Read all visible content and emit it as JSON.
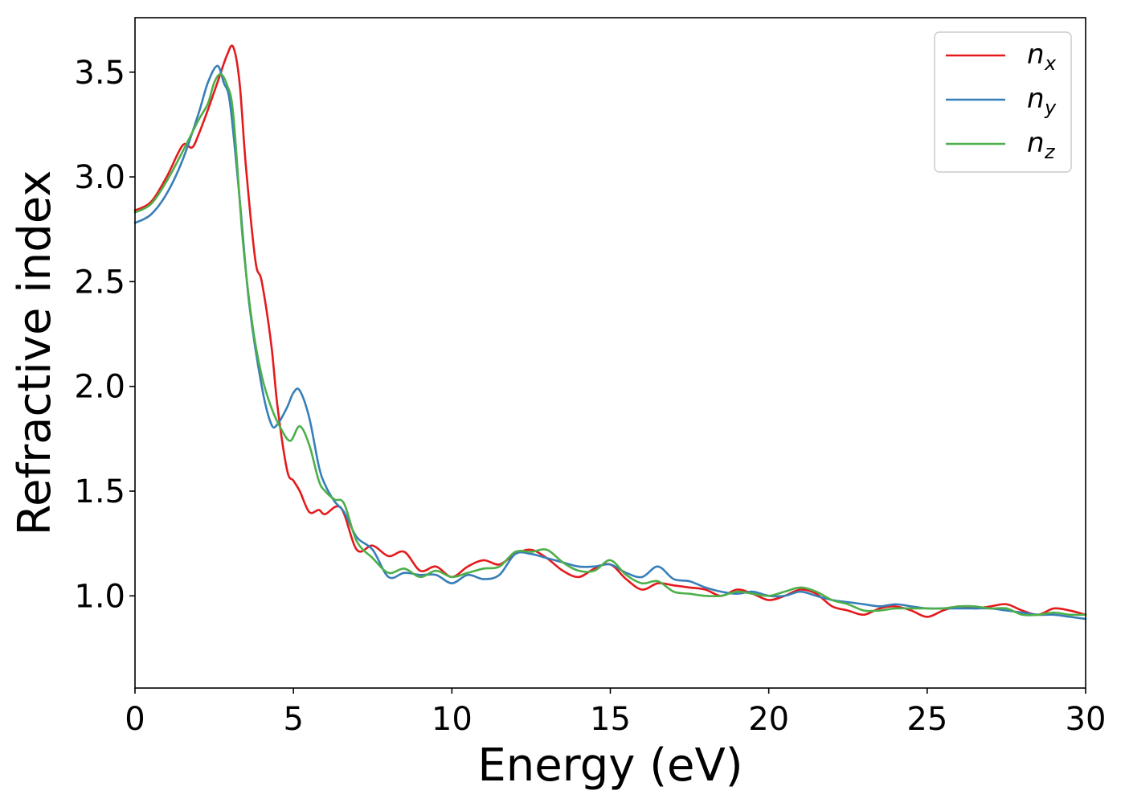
{
  "chart_data": {
    "type": "line",
    "title": "",
    "xlabel": "Energy (eV)",
    "ylabel": "Refractive index",
    "xlim": [
      0,
      30
    ],
    "ylim": [
      0.56,
      3.76
    ],
    "xticks": [
      0,
      5,
      10,
      15,
      20,
      25,
      30
    ],
    "xtick_labels": [
      "0",
      "5",
      "10",
      "15",
      "20",
      "25",
      "30"
    ],
    "yticks": [
      1.0,
      1.5,
      2.0,
      2.5,
      3.0,
      3.5
    ],
    "ytick_labels": [
      "1.0",
      "1.5",
      "2.0",
      "2.5",
      "3.0",
      "3.5"
    ],
    "grid": false,
    "legend_position": "top-right",
    "series": [
      {
        "name": "n_x",
        "legend_base": "n",
        "legend_sub": "x",
        "color": "#e41a1c",
        "x": [
          0,
          0.5,
          1.0,
          1.5,
          1.8,
          2.0,
          2.3,
          2.6,
          2.9,
          3.1,
          3.3,
          3.5,
          3.8,
          4.0,
          4.3,
          4.5,
          4.8,
          5.0,
          5.2,
          5.5,
          5.8,
          6.0,
          6.5,
          7.0,
          7.5,
          8.0,
          8.5,
          9.0,
          9.5,
          10.0,
          10.5,
          11.0,
          11.5,
          12.0,
          12.5,
          13.0,
          13.5,
          14.0,
          14.5,
          15.0,
          15.5,
          16.0,
          16.5,
          17.0,
          17.5,
          18.0,
          18.5,
          19.0,
          19.5,
          20.0,
          20.5,
          21.0,
          21.5,
          22.0,
          22.5,
          23.0,
          23.5,
          24.0,
          24.5,
          25.0,
          25.5,
          26.0,
          26.5,
          27.0,
          27.5,
          28.0,
          28.5,
          29.0,
          29.5,
          30.0
        ],
        "y": [
          2.84,
          2.88,
          3.0,
          3.15,
          3.14,
          3.2,
          3.32,
          3.45,
          3.58,
          3.62,
          3.45,
          3.05,
          2.6,
          2.5,
          2.2,
          1.9,
          1.6,
          1.55,
          1.5,
          1.4,
          1.41,
          1.39,
          1.42,
          1.22,
          1.24,
          1.19,
          1.21,
          1.12,
          1.14,
          1.09,
          1.14,
          1.17,
          1.15,
          1.2,
          1.22,
          1.18,
          1.12,
          1.09,
          1.13,
          1.15,
          1.08,
          1.03,
          1.06,
          1.05,
          1.04,
          1.03,
          1.0,
          1.03,
          1.01,
          0.98,
          1.0,
          1.03,
          1.01,
          0.95,
          0.93,
          0.91,
          0.94,
          0.95,
          0.93,
          0.9,
          0.93,
          0.95,
          0.94,
          0.95,
          0.96,
          0.93,
          0.91,
          0.94,
          0.93,
          0.91
        ]
      },
      {
        "name": "n_y",
        "legend_base": "n",
        "legend_sub": "y",
        "color": "#377eb8",
        "x": [
          0,
          0.5,
          1.0,
          1.5,
          2.0,
          2.3,
          2.6,
          2.8,
          3.0,
          3.3,
          3.6,
          4.0,
          4.3,
          4.5,
          4.8,
          5.0,
          5.2,
          5.5,
          5.8,
          6.0,
          6.3,
          6.6,
          7.0,
          7.5,
          8.0,
          8.5,
          9.0,
          9.5,
          10.0,
          10.5,
          11.0,
          11.5,
          12.0,
          12.5,
          13.0,
          13.5,
          14.0,
          14.5,
          15.0,
          15.5,
          16.0,
          16.5,
          17.0,
          17.5,
          18.0,
          18.5,
          19.0,
          19.5,
          20.0,
          20.5,
          21.0,
          21.5,
          22.0,
          22.5,
          23.0,
          23.5,
          24.0,
          24.5,
          25.0,
          25.5,
          26.0,
          26.5,
          27.0,
          27.5,
          28.0,
          28.5,
          29.0,
          29.5,
          30.0
        ],
        "y": [
          2.78,
          2.82,
          2.92,
          3.08,
          3.3,
          3.45,
          3.53,
          3.45,
          3.35,
          2.9,
          2.4,
          2.0,
          1.82,
          1.82,
          1.9,
          1.97,
          1.98,
          1.85,
          1.62,
          1.53,
          1.45,
          1.4,
          1.28,
          1.22,
          1.09,
          1.11,
          1.1,
          1.1,
          1.06,
          1.1,
          1.08,
          1.1,
          1.2,
          1.2,
          1.18,
          1.16,
          1.14,
          1.14,
          1.15,
          1.11,
          1.09,
          1.14,
          1.08,
          1.07,
          1.04,
          1.02,
          1.01,
          1.02,
          1.0,
          1.0,
          1.02,
          1.0,
          0.98,
          0.97,
          0.96,
          0.95,
          0.96,
          0.95,
          0.94,
          0.94,
          0.94,
          0.94,
          0.94,
          0.93,
          0.92,
          0.91,
          0.91,
          0.9,
          0.89
        ]
      },
      {
        "name": "n_z",
        "legend_base": "n",
        "legend_sub": "z",
        "color": "#4daf4a",
        "x": [
          0,
          0.5,
          1.0,
          1.5,
          2.0,
          2.3,
          2.5,
          2.7,
          2.9,
          3.1,
          3.4,
          3.7,
          4.0,
          4.3,
          4.6,
          4.9,
          5.2,
          5.5,
          5.8,
          6.0,
          6.3,
          6.6,
          7.0,
          7.5,
          8.0,
          8.5,
          9.0,
          9.5,
          10.0,
          10.5,
          11.0,
          11.5,
          12.0,
          12.5,
          13.0,
          13.5,
          14.0,
          14.5,
          15.0,
          15.5,
          16.0,
          16.5,
          17.0,
          17.5,
          18.0,
          18.5,
          19.0,
          19.5,
          20.0,
          20.5,
          21.0,
          21.5,
          22.0,
          22.5,
          23.0,
          23.5,
          24.0,
          24.5,
          25.0,
          25.5,
          26.0,
          26.5,
          27.0,
          27.5,
          28.0,
          28.5,
          29.0,
          29.5,
          30.0
        ],
        "y": [
          2.83,
          2.87,
          2.98,
          3.12,
          3.27,
          3.35,
          3.45,
          3.49,
          3.44,
          3.3,
          2.7,
          2.3,
          2.05,
          1.9,
          1.8,
          1.74,
          1.81,
          1.72,
          1.55,
          1.5,
          1.46,
          1.44,
          1.26,
          1.18,
          1.11,
          1.13,
          1.09,
          1.12,
          1.09,
          1.11,
          1.13,
          1.14,
          1.21,
          1.21,
          1.22,
          1.16,
          1.12,
          1.12,
          1.17,
          1.1,
          1.06,
          1.07,
          1.02,
          1.01,
          1.0,
          1.0,
          1.02,
          1.01,
          1.0,
          1.02,
          1.04,
          1.02,
          0.98,
          0.96,
          0.93,
          0.93,
          0.94,
          0.94,
          0.94,
          0.94,
          0.95,
          0.95,
          0.94,
          0.94,
          0.91,
          0.91,
          0.92,
          0.91,
          0.91
        ]
      }
    ]
  }
}
